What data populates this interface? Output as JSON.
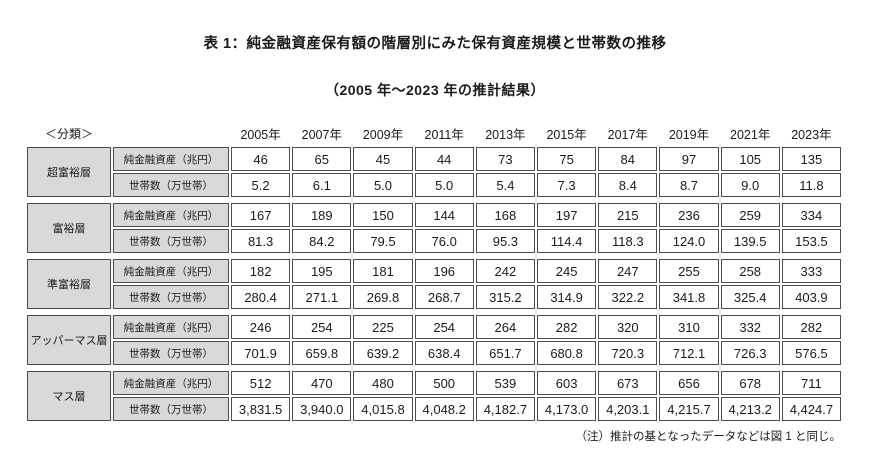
{
  "title": "表 1：純金融資産保有額の階層別にみた保有資産規模と世帯数の推移",
  "subtitle": "（2005 年～2023 年の推計結果）",
  "note": "（注）推計の基となったデータなどは図 1 と同じ。",
  "table": {
    "classification_label": "＜分類＞",
    "years": [
      "2005年",
      "2007年",
      "2009年",
      "2011年",
      "2013年",
      "2015年",
      "2017年",
      "2019年",
      "2021年",
      "2023年"
    ],
    "row_labels": {
      "assets": "純金融資産（兆円）",
      "households": "世帯数（万世帯）"
    },
    "tiers": [
      {
        "name": "超富裕層",
        "assets": [
          "46",
          "65",
          "45",
          "44",
          "73",
          "75",
          "84",
          "97",
          "105",
          "135"
        ],
        "households": [
          "5.2",
          "6.1",
          "5.0",
          "5.0",
          "5.4",
          "7.3",
          "8.4",
          "8.7",
          "9.0",
          "11.8"
        ]
      },
      {
        "name": "富裕層",
        "assets": [
          "167",
          "189",
          "150",
          "144",
          "168",
          "197",
          "215",
          "236",
          "259",
          "334"
        ],
        "households": [
          "81.3",
          "84.2",
          "79.5",
          "76.0",
          "95.3",
          "114.4",
          "118.3",
          "124.0",
          "139.5",
          "153.5"
        ]
      },
      {
        "name": "準富裕層",
        "assets": [
          "182",
          "195",
          "181",
          "196",
          "242",
          "245",
          "247",
          "255",
          "258",
          "333"
        ],
        "households": [
          "280.4",
          "271.1",
          "269.8",
          "268.7",
          "315.2",
          "314.9",
          "322.2",
          "341.8",
          "325.4",
          "403.9"
        ]
      },
      {
        "name": "アッパーマス層",
        "assets": [
          "246",
          "254",
          "225",
          "254",
          "264",
          "282",
          "320",
          "310",
          "332",
          "282"
        ],
        "households": [
          "701.9",
          "659.8",
          "639.2",
          "638.4",
          "651.7",
          "680.8",
          "720.3",
          "712.1",
          "726.3",
          "576.5"
        ]
      },
      {
        "name": "マス層",
        "assets": [
          "512",
          "470",
          "480",
          "500",
          "539",
          "603",
          "673",
          "656",
          "678",
          "711"
        ],
        "households": [
          "3,831.5",
          "3,940.0",
          "4,015.8",
          "4,048.2",
          "4,182.7",
          "4,173.0",
          "4,203.1",
          "4,215.7",
          "4,213.2",
          "4,424.7"
        ]
      }
    ]
  },
  "chart_data": {
    "type": "table",
    "title": "表1：純金融資産保有額の階層別にみた保有資産規模と世帯数の推移（2005年～2023年の推計結果）",
    "categories": [
      "2005年",
      "2007年",
      "2009年",
      "2011年",
      "2013年",
      "2015年",
      "2017年",
      "2019年",
      "2021年",
      "2023年"
    ],
    "series": [
      {
        "name": "超富裕層 純金融資産（兆円）",
        "values": [
          46,
          65,
          45,
          44,
          73,
          75,
          84,
          97,
          105,
          135
        ]
      },
      {
        "name": "超富裕層 世帯数（万世帯）",
        "values": [
          5.2,
          6.1,
          5.0,
          5.0,
          5.4,
          7.3,
          8.4,
          8.7,
          9.0,
          11.8
        ]
      },
      {
        "name": "富裕層 純金融資産（兆円）",
        "values": [
          167,
          189,
          150,
          144,
          168,
          197,
          215,
          236,
          259,
          334
        ]
      },
      {
        "name": "富裕層 世帯数（万世帯）",
        "values": [
          81.3,
          84.2,
          79.5,
          76.0,
          95.3,
          114.4,
          118.3,
          124.0,
          139.5,
          153.5
        ]
      },
      {
        "name": "準富裕層 純金融資産（兆円）",
        "values": [
          182,
          195,
          181,
          196,
          242,
          245,
          247,
          255,
          258,
          333
        ]
      },
      {
        "name": "準富裕層 世帯数（万世帯）",
        "values": [
          280.4,
          271.1,
          269.8,
          268.7,
          315.2,
          314.9,
          322.2,
          341.8,
          325.4,
          403.9
        ]
      },
      {
        "name": "アッパーマス層 純金融資産（兆円）",
        "values": [
          246,
          254,
          225,
          254,
          264,
          282,
          320,
          310,
          332,
          282
        ]
      },
      {
        "name": "アッパーマス層 世帯数（万世帯）",
        "values": [
          701.9,
          659.8,
          639.2,
          638.4,
          651.7,
          680.8,
          720.3,
          712.1,
          726.3,
          576.5
        ]
      },
      {
        "name": "マス層 純金融資産（兆円）",
        "values": [
          512,
          470,
          480,
          500,
          539,
          603,
          673,
          656,
          678,
          711
        ]
      },
      {
        "name": "マス層 世帯数（万世帯）",
        "values": [
          3831.5,
          3940.0,
          4015.8,
          4048.2,
          4182.7,
          4173.0,
          4203.1,
          4215.7,
          4213.2,
          4424.7
        ]
      }
    ]
  }
}
